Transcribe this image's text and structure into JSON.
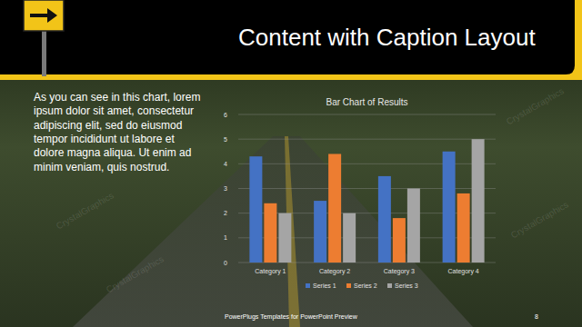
{
  "slide": {
    "title": "Content with Caption Layout",
    "body": [
      "As you can see in this chart, lorem",
      "ipsum dolor sit amet, consectetur",
      "adipiscing elit, sed do eiusmod",
      "tempor incididunt ut labore et",
      "dolore magna aliqua. Ut enim ad",
      "minim veniam, quis nostrud."
    ],
    "footer": "PowerPlugs Templates for PowerPoint Preview",
    "page_number": 8,
    "watermark": "CrystalGraphics"
  },
  "chart_data": {
    "type": "bar",
    "title": "Bar Chart of Results",
    "categories": [
      "Category 1",
      "Category 2",
      "Category 3",
      "Category 4"
    ],
    "series": [
      {
        "name": "Series 1",
        "color": "#4472c4",
        "values": [
          4.3,
          2.5,
          3.5,
          4.5
        ]
      },
      {
        "name": "Series 2",
        "color": "#ed7d31",
        "values": [
          2.4,
          4.4,
          1.8,
          2.8
        ]
      },
      {
        "name": "Series 3",
        "color": "#a5a5a5",
        "values": [
          2,
          2,
          3,
          5
        ]
      }
    ],
    "ylim": [
      0,
      6
    ],
    "yticks": [
      0,
      1,
      2,
      3,
      4,
      5,
      6
    ],
    "grid": true,
    "legend": "bottom"
  }
}
